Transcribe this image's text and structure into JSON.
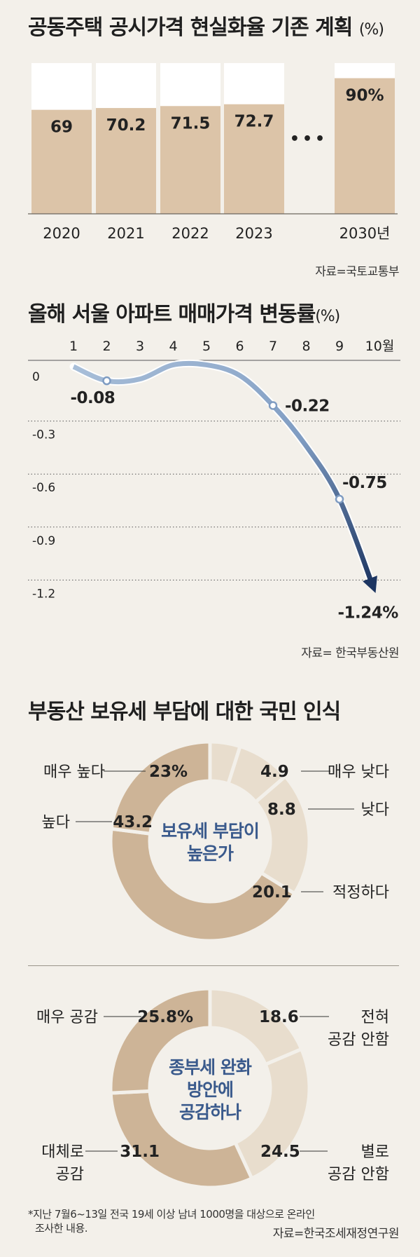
{
  "chart1": {
    "title": "공동주택 공시가격 현실화율 기존 계획",
    "unit": "(%)",
    "ellipsis": "•••",
    "source": "자료=국토교통부",
    "chart_data": {
      "type": "bar",
      "categories": [
        "2020",
        "2021",
        "2022",
        "2023",
        "2030년"
      ],
      "values": [
        69,
        70.2,
        71.5,
        72.7,
        90
      ],
      "value_labels": [
        "69",
        "70.2",
        "71.5",
        "72.7",
        "90%"
      ],
      "ylim": [
        0,
        100
      ],
      "colors": {
        "bar": "#dcc4a8",
        "track": "#ffffff"
      }
    }
  },
  "chart2": {
    "title": "올해 서울 아파트 매매가격 변동률",
    "unit": "(%)",
    "source": "자료= 한국부동산원",
    "chart_data": {
      "type": "line",
      "x": [
        1,
        2,
        3,
        4,
        5,
        6,
        7,
        8,
        9,
        10
      ],
      "x_labels": [
        "1",
        "2",
        "3",
        "4",
        "5",
        "6",
        "7",
        "8",
        "9",
        "10월"
      ],
      "values": [
        0,
        -0.08,
        -0.07,
        0.01,
        0.01,
        -0.05,
        -0.22,
        -0.45,
        -0.75,
        -1.24
      ],
      "annotations": [
        {
          "index": 1,
          "label": "-0.08"
        },
        {
          "index": 6,
          "label": "-0.22"
        },
        {
          "index": 8,
          "label": "-0.75"
        },
        {
          "index": 9,
          "label": "-1.24%"
        }
      ],
      "y_ticks": [
        0,
        -0.3,
        -0.6,
        -0.9,
        -1.2
      ],
      "y_tick_labels": [
        "0",
        "-0.3",
        "-0.6",
        "-0.9",
        "-1.2"
      ],
      "ylim": [
        -1.3,
        0.05
      ],
      "colors": {
        "start": "#a9bfd9",
        "end": "#1c3561"
      }
    }
  },
  "chart3": {
    "title": "부동산 보유세 부담에 대한 국민 인식",
    "donut1": {
      "center": [
        "보유세 부담이",
        "높은가"
      ],
      "chart_data": {
        "type": "pie",
        "categories": [
          "매우 높다",
          "높다",
          "매우 낮다",
          "낮다",
          "적정하다"
        ],
        "values": [
          23,
          43.2,
          4.9,
          8.8,
          20.1
        ],
        "value_labels": [
          "23%",
          "43.2",
          "4.9",
          "8.8",
          "20.1"
        ]
      }
    },
    "donut2": {
      "center": [
        "종부세 완화",
        "방안에",
        "공감하나"
      ],
      "chart_data": {
        "type": "pie",
        "categories": [
          "매우 공감",
          "대체로 공감",
          "전혀 공감 안함",
          "별로 공감 안함"
        ],
        "category_lines": [
          [
            "매우 공감"
          ],
          [
            "대체로",
            "공감"
          ],
          [
            "전혀",
            "공감 안함"
          ],
          [
            "별로",
            "공감 안함"
          ]
        ],
        "values": [
          25.8,
          31.1,
          18.6,
          24.5
        ],
        "value_labels": [
          "25.8%",
          "31.1",
          "18.6",
          "24.5"
        ]
      }
    },
    "footnote": [
      "*지난 7월6~13일 전국 19세 이상 남녀 1000명을 대상으로 온라인",
      "조사한 내용."
    ],
    "source": "자료=한국조세재정연구원",
    "colors": {
      "dark": "#cdb497",
      "light": "#e8ddcd",
      "center_text": "#3a5a8c"
    }
  }
}
